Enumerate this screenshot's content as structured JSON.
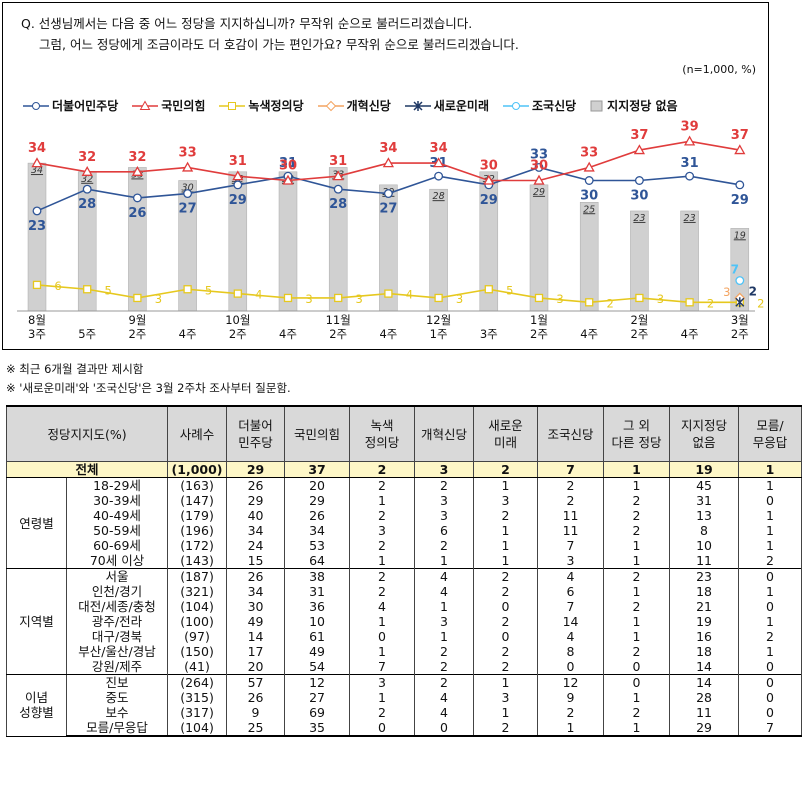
{
  "question": {
    "line1": "Q. 선생님께서는 다음 중 어느 정당을 지지하십니까? 무작위 순으로 불러드리겠습니다.",
    "line2": "그럼, 어느 정당에게 조금이라도 더 호감이 가는 편인가요? 무작위 순으로 불러드리겠습니다."
  },
  "sample_note": "(n=1,000,  %)",
  "notes": [
    "※ 최근 6개월 결과만 제시함",
    "※ '새로운미래'와 '조국신당'은 3월 2주차 조사부터 질문함."
  ],
  "colors": {
    "democratic": "#2f5597",
    "ppp": "#e03c3c",
    "justice": "#e6c81e",
    "reform": "#f4a460",
    "newfuture": "#1f3864",
    "cho": "#4fc3f7",
    "none_bar": "#d0d0d0"
  },
  "chart_data": {
    "type": "line",
    "x": [
      [
        "8월",
        "3주"
      ],
      [
        "",
        "5주"
      ],
      [
        "9월",
        "2주"
      ],
      [
        "",
        "4주"
      ],
      [
        "10월",
        "2주"
      ],
      [
        "",
        "4주"
      ],
      [
        "11월",
        "2주"
      ],
      [
        "",
        "4주"
      ],
      [
        "12월",
        "1주"
      ],
      [
        "",
        "3주"
      ],
      [
        "1월",
        "2주"
      ],
      [
        "",
        "4주"
      ],
      [
        "2월",
        "2주"
      ],
      [
        "",
        "4주"
      ],
      [
        "3월",
        "2주"
      ]
    ],
    "series": [
      {
        "name": "더불어민주당",
        "values": [
          23,
          28,
          26,
          27,
          29,
          31,
          28,
          27,
          31,
          29,
          33,
          30,
          30,
          31,
          29
        ],
        "marker": "circle"
      },
      {
        "name": "국민의힘",
        "values": [
          34,
          32,
          32,
          33,
          31,
          30,
          31,
          34,
          34,
          30,
          30,
          33,
          37,
          39,
          37
        ],
        "marker": "triangle"
      },
      {
        "name": "녹색정의당",
        "values": [
          6,
          5,
          3,
          5,
          4,
          3,
          3,
          4,
          3,
          5,
          3,
          2,
          3,
          2,
          2
        ],
        "marker": "square"
      },
      {
        "name": "개혁신당",
        "values": [
          null,
          null,
          null,
          null,
          null,
          null,
          null,
          null,
          null,
          null,
          null,
          null,
          null,
          null,
          3
        ],
        "marker": "diamond"
      },
      {
        "name": "새로운미래",
        "values": [
          null,
          null,
          null,
          null,
          null,
          null,
          null,
          null,
          null,
          null,
          null,
          null,
          null,
          null,
          2
        ],
        "marker": "star"
      },
      {
        "name": "조국신당",
        "values": [
          null,
          null,
          null,
          null,
          null,
          null,
          null,
          null,
          null,
          null,
          null,
          null,
          null,
          null,
          7
        ],
        "marker": "circle"
      },
      {
        "name": "지지정당 없음",
        "values": [
          34,
          32,
          33,
          30,
          32,
          32,
          33,
          29,
          28,
          32,
          29,
          25,
          23,
          23,
          19
        ],
        "type": "bar"
      }
    ],
    "ylim": [
      0,
      45
    ],
    "legend": "top"
  },
  "table": {
    "headers": [
      "정당지지도(%)",
      "사례수",
      "더불어\n민주당",
      "국민의힘",
      "녹색\n정의당",
      "개혁신당",
      "새로운\n미래",
      "조국신당",
      "그 외\n다른 정당",
      "지지정당\n없음",
      "모름/\n무응답"
    ],
    "total": {
      "label": "전체",
      "n": "(1,000)",
      "values": [
        "29",
        "37",
        "2",
        "3",
        "2",
        "7",
        "1",
        "19",
        "1"
      ]
    },
    "groups": [
      {
        "name": "연령별",
        "rows": [
          {
            "label": "18-29세",
            "n": "(163)",
            "values": [
              "26",
              "20",
              "2",
              "2",
              "1",
              "2",
              "1",
              "45",
              "1"
            ]
          },
          {
            "label": "30-39세",
            "n": "(147)",
            "values": [
              "29",
              "29",
              "1",
              "3",
              "3",
              "2",
              "2",
              "31",
              "0"
            ]
          },
          {
            "label": "40-49세",
            "n": "(179)",
            "values": [
              "40",
              "26",
              "2",
              "3",
              "2",
              "11",
              "2",
              "13",
              "1"
            ]
          },
          {
            "label": "50-59세",
            "n": "(196)",
            "values": [
              "34",
              "34",
              "3",
              "6",
              "1",
              "11",
              "2",
              "8",
              "1"
            ]
          },
          {
            "label": "60-69세",
            "n": "(172)",
            "values": [
              "24",
              "53",
              "2",
              "2",
              "1",
              "7",
              "1",
              "10",
              "1"
            ]
          },
          {
            "label": "70세 이상",
            "n": "(143)",
            "values": [
              "15",
              "64",
              "1",
              "1",
              "1",
              "3",
              "1",
              "11",
              "2"
            ]
          }
        ]
      },
      {
        "name": "지역별",
        "rows": [
          {
            "label": "서울",
            "n": "(187)",
            "values": [
              "26",
              "38",
              "2",
              "4",
              "2",
              "4",
              "2",
              "23",
              "0"
            ]
          },
          {
            "label": "인천/경기",
            "n": "(321)",
            "values": [
              "34",
              "31",
              "2",
              "4",
              "2",
              "6",
              "1",
              "18",
              "1"
            ]
          },
          {
            "label": "대전/세종/충청",
            "n": "(104)",
            "values": [
              "30",
              "36",
              "4",
              "1",
              "0",
              "7",
              "2",
              "21",
              "0"
            ]
          },
          {
            "label": "광주/전라",
            "n": "(100)",
            "values": [
              "49",
              "10",
              "1",
              "3",
              "2",
              "14",
              "1",
              "19",
              "1"
            ]
          },
          {
            "label": "대구/경북",
            "n": "(97)",
            "values": [
              "14",
              "61",
              "0",
              "1",
              "0",
              "4",
              "1",
              "16",
              "2"
            ]
          },
          {
            "label": "부산/울산/경남",
            "n": "(150)",
            "values": [
              "17",
              "49",
              "1",
              "2",
              "2",
              "8",
              "2",
              "18",
              "1"
            ]
          },
          {
            "label": "강원/제주",
            "n": "(41)",
            "values": [
              "20",
              "54",
              "7",
              "2",
              "2",
              "0",
              "0",
              "14",
              "0"
            ]
          }
        ]
      },
      {
        "name": "이념\n성향별",
        "rows": [
          {
            "label": "진보",
            "n": "(264)",
            "values": [
              "57",
              "12",
              "3",
              "2",
              "1",
              "12",
              "0",
              "14",
              "0"
            ]
          },
          {
            "label": "중도",
            "n": "(315)",
            "values": [
              "26",
              "27",
              "1",
              "4",
              "3",
              "9",
              "1",
              "28",
              "0"
            ]
          },
          {
            "label": "보수",
            "n": "(317)",
            "values": [
              "9",
              "69",
              "2",
              "4",
              "1",
              "2",
              "2",
              "11",
              "0"
            ]
          },
          {
            "label": "모름/무응답",
            "n": "(104)",
            "values": [
              "25",
              "35",
              "0",
              "0",
              "2",
              "1",
              "1",
              "29",
              "7"
            ]
          }
        ]
      }
    ]
  }
}
